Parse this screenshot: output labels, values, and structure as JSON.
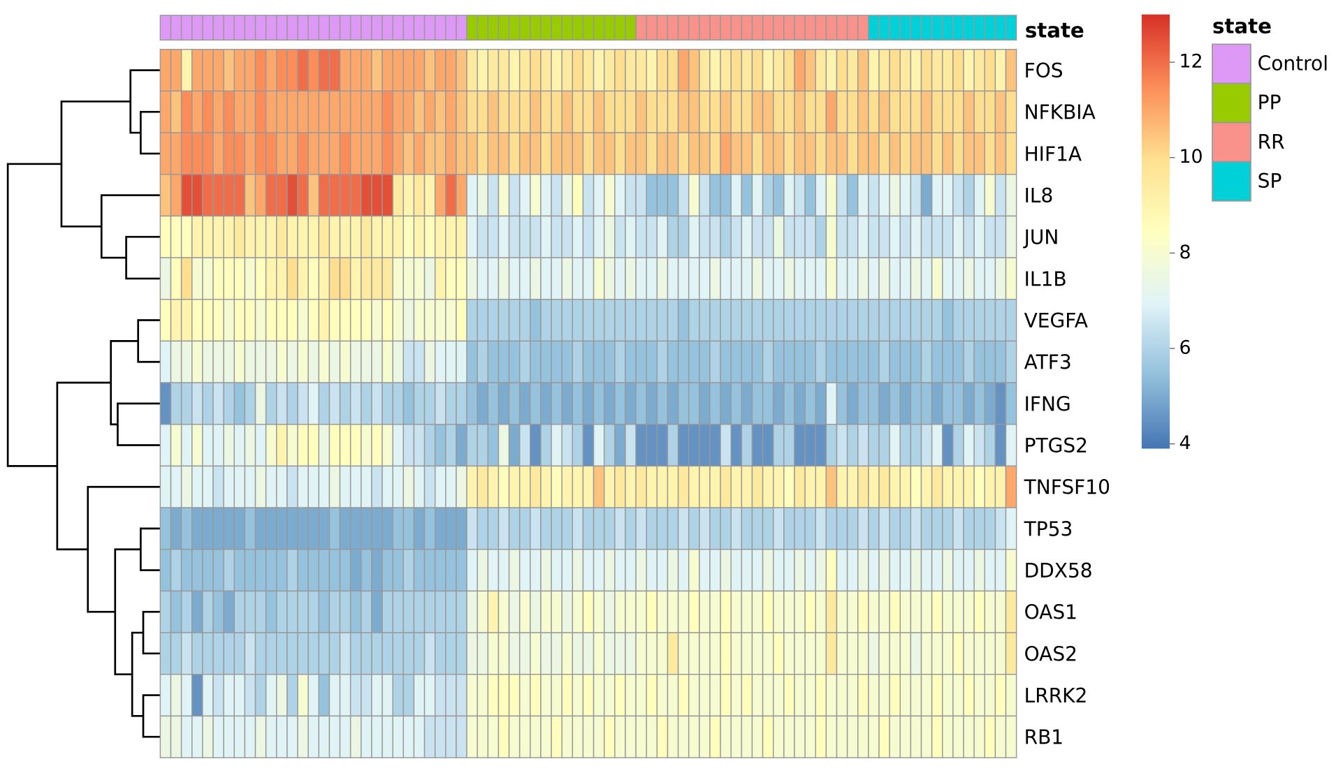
{
  "chart_data": {
    "type": "heatmap",
    "rows": [
      "FOS",
      "NFKBIA",
      "HIF1A",
      "IL8",
      "JUN",
      "IL1B",
      "VEGFA",
      "ATF3",
      "IFNG",
      "PTGS2",
      "TNFSF10",
      "TP53",
      "DDX58",
      "OAS1",
      "OAS2",
      "LRRK2",
      "RB1"
    ],
    "z": [
      [
        11,
        11,
        9,
        11,
        11,
        11,
        10.5,
        11,
        11,
        11.5,
        11,
        11.5,
        11.5,
        12,
        11.5,
        12,
        12,
        11,
        11,
        11,
        10.5,
        11,
        11,
        11,
        11,
        10.5,
        11,
        11,
        10.5,
        9.5,
        9,
        9.5,
        9.5,
        9,
        9.5,
        10,
        9.5,
        9,
        9.5,
        10,
        9.5,
        9,
        9.5,
        10,
        9.5,
        9.5,
        9,
        10,
        10,
        11,
        10.5,
        9.5,
        9,
        9.5,
        10,
        9.5,
        10,
        9,
        9.5,
        10,
        11,
        10.5,
        9.5,
        9,
        10,
        9.5,
        10.5,
        9,
        9.5,
        10,
        9.5,
        9,
        10,
        9.5,
        9.5,
        10,
        9,
        9.5,
        10,
        9,
        10.5
      ],
      [
        11,
        10.5,
        11.5,
        11,
        11.5,
        11,
        11.5,
        11,
        11,
        11.5,
        11,
        11,
        11,
        11,
        11,
        11,
        11,
        11,
        11,
        11,
        11,
        11.5,
        11,
        11,
        10.5,
        11,
        10.5,
        11,
        10.5,
        10,
        10,
        10.5,
        10,
        10,
        10,
        10.5,
        10,
        10,
        10.5,
        10,
        10,
        10.5,
        10,
        10,
        10,
        10.5,
        10,
        10,
        10,
        10.5,
        10.5,
        10,
        10,
        10.5,
        10,
        10,
        10.5,
        10.5,
        10,
        10,
        10.5,
        10,
        10,
        11,
        10,
        10,
        10.5,
        10,
        10.5,
        10,
        10,
        10,
        10.5,
        10,
        10,
        10,
        10.5,
        10,
        10,
        10.5,
        10
      ],
      [
        11,
        11,
        11.5,
        11.5,
        11.5,
        11,
        11.5,
        11.5,
        11,
        11.5,
        11.5,
        11,
        11,
        11.5,
        11,
        11,
        11,
        11.5,
        11,
        11,
        11,
        11.5,
        11,
        10.5,
        11,
        10.5,
        10.5,
        11,
        10.5,
        10.5,
        10,
        10.5,
        10.5,
        10,
        10.5,
        10.5,
        10,
        10.5,
        10.5,
        10.5,
        10,
        10.5,
        10.5,
        10,
        10.5,
        10.5,
        10,
        10.5,
        10.5,
        10,
        10.5,
        10.5,
        10,
        11,
        10.5,
        10.5,
        10,
        10.5,
        10.5,
        10,
        10.5,
        10.5,
        10,
        10.5,
        10.5,
        10,
        10.5,
        10.5,
        10,
        10.5,
        10,
        10.5,
        10.5,
        10,
        10.5,
        10,
        10.5,
        10.5,
        10,
        10.5,
        10
      ],
      [
        10.5,
        11,
        12.5,
        12.5,
        12,
        12,
        12,
        12,
        10.5,
        11,
        12,
        12,
        12.5,
        12,
        10.5,
        12,
        12,
        12,
        12,
        12.5,
        12.5,
        12.5,
        9.5,
        9,
        9.5,
        9,
        11,
        12,
        11,
        7,
        7.5,
        6.5,
        8,
        6.5,
        7,
        8,
        7,
        6.5,
        7.5,
        8.5,
        6.5,
        7,
        8,
        7,
        6.5,
        6.5,
        5.5,
        5.5,
        5.5,
        6.5,
        8,
        6.5,
        5.5,
        5.5,
        7,
        5.5,
        7,
        6,
        5.5,
        7,
        6.5,
        5.5,
        7,
        8,
        6.5,
        5.5,
        7,
        6.5,
        7,
        7.5,
        7,
        6.5,
        5,
        7,
        7,
        6.5,
        6,
        7,
        8,
        6.5,
        7.5
      ],
      [
        8.5,
        8.5,
        8.5,
        9,
        9,
        9,
        9,
        9.5,
        9,
        9,
        9,
        9.5,
        9,
        9,
        9,
        9.5,
        9,
        9,
        9,
        9.5,
        9,
        9,
        9,
        8.5,
        9,
        8.5,
        9,
        9,
        9,
        7,
        6.5,
        6.5,
        7,
        6.5,
        6.5,
        6.5,
        7,
        6.5,
        6.5,
        7,
        6.5,
        7,
        7.5,
        6.5,
        7,
        6.5,
        6.5,
        7,
        6,
        6,
        7,
        6.5,
        6.5,
        6,
        6.5,
        7,
        6.5,
        6.5,
        7.5,
        6.5,
        6.5,
        6.5,
        6,
        8,
        6.5,
        6.5,
        7,
        6.5,
        6.5,
        7,
        6.5,
        7,
        6.5,
        6.5,
        6.5,
        7,
        6.5,
        7,
        6.5,
        6.5,
        7.5
      ],
      [
        7.5,
        8.5,
        10,
        8,
        8,
        8.5,
        8.5,
        8.5,
        8,
        8.5,
        9,
        9,
        10,
        9,
        8.5,
        9,
        10,
        10,
        9,
        9.5,
        9.5,
        9.5,
        8,
        8,
        8,
        7.5,
        9,
        8.5,
        8.5,
        7.5,
        7,
        7,
        7.5,
        7,
        7,
        7.5,
        7,
        7,
        7.5,
        7,
        7,
        8,
        7.5,
        7,
        7.5,
        7,
        7,
        7.5,
        7,
        7,
        7,
        7,
        7.5,
        7,
        7,
        7,
        7.5,
        7,
        7,
        7.5,
        7,
        7,
        7,
        8,
        7,
        7,
        7.5,
        7,
        7.5,
        7,
        7,
        7.5,
        7,
        8,
        7,
        7,
        7.5,
        7,
        7,
        7.5,
        8
      ],
      [
        8.5,
        9,
        9,
        8.5,
        8.5,
        8.5,
        8,
        8.5,
        8.5,
        8,
        8.5,
        8.5,
        8.5,
        8,
        8.5,
        9,
        8.5,
        8.5,
        8.5,
        8.5,
        8,
        8.5,
        8,
        7.5,
        8,
        8,
        8,
        8,
        8.5,
        6,
        6,
        6,
        6,
        6,
        6,
        5.5,
        6,
        6,
        6,
        6,
        6,
        6,
        6,
        6,
        6,
        6,
        6,
        6,
        6,
        5.5,
        6,
        6,
        6,
        6,
        6,
        6,
        6,
        6,
        6,
        6,
        6,
        6,
        6,
        6,
        6,
        6,
        6,
        6,
        6,
        6,
        6,
        6,
        6,
        6,
        5.5,
        6,
        6,
        6,
        6,
        6,
        6
      ],
      [
        7,
        7.5,
        7.5,
        8,
        7.5,
        7.5,
        7.5,
        8,
        7.5,
        7.5,
        7.5,
        8,
        7.5,
        8,
        7.5,
        8,
        7.5,
        8,
        7.5,
        7.5,
        7.5,
        8,
        7.5,
        6.5,
        6.5,
        7.5,
        7,
        7,
        7,
        5.5,
        6,
        5.5,
        5.5,
        5.5,
        6,
        5.5,
        5.5,
        5.5,
        5.5,
        6,
        5.5,
        5.5,
        5.5,
        6,
        5.5,
        5.5,
        5.5,
        6,
        5.5,
        5.5,
        5.5,
        5.5,
        6,
        5.5,
        5.5,
        5.5,
        5.5,
        6,
        5.5,
        5.5,
        5.5,
        5.5,
        6,
        5.5,
        5.5,
        5.5,
        5.5,
        5.5,
        6,
        5.5,
        5.5,
        5.5,
        6,
        5.5,
        5.5,
        5.5,
        6,
        5.5,
        5.5,
        5.5,
        6
      ],
      [
        4.5,
        6,
        6,
        6.5,
        6,
        6.5,
        6,
        5.5,
        6,
        7.5,
        6,
        6.5,
        6,
        6.5,
        7,
        6,
        6.5,
        6,
        6.5,
        6,
        6.5,
        6,
        6,
        5.5,
        6,
        6,
        6.5,
        6,
        6,
        5.5,
        5,
        5.5,
        5,
        5.5,
        5,
        5.5,
        5,
        5.5,
        5,
        5.5,
        5,
        5.5,
        5,
        5.5,
        5,
        5.5,
        5,
        5.5,
        5,
        5.5,
        5.5,
        5,
        5.5,
        5,
        5.5,
        5,
        5.5,
        5.5,
        5,
        5.5,
        5,
        5.5,
        5,
        7,
        5.5,
        5,
        5.5,
        5.5,
        5,
        5.5,
        5,
        5.5,
        5.5,
        5,
        5.5,
        5.5,
        5,
        5.5,
        5,
        4.5,
        5.5
      ],
      [
        7,
        8,
        7,
        8,
        7,
        7,
        7.5,
        7,
        7.5,
        7,
        8,
        9,
        8,
        8.5,
        8.5,
        7.5,
        8.5,
        8.5,
        8.5,
        8,
        8.5,
        8,
        7,
        6.5,
        6.5,
        6,
        5.5,
        6,
        5,
        6,
        6,
        5.5,
        7.5,
        5,
        6.5,
        4.5,
        6,
        7,
        6.5,
        6,
        4.5,
        7,
        6,
        5,
        6.5,
        4.5,
        4.5,
        4.5,
        6,
        4.5,
        4.5,
        4.5,
        4.5,
        6.5,
        4.5,
        6,
        4.5,
        4.5,
        6,
        6,
        4.5,
        4.5,
        4.5,
        6,
        6.5,
        6,
        6.5,
        6,
        6,
        7,
        6,
        6,
        6.5,
        7,
        4.5,
        6,
        7,
        6.5,
        6,
        4.5,
        7
      ],
      [
        7,
        7,
        7.5,
        7,
        7,
        6.5,
        7,
        7,
        7,
        7.5,
        7,
        7,
        6.5,
        7,
        7,
        7,
        7.5,
        7,
        7,
        7,
        6.5,
        7,
        7,
        7.5,
        7,
        6.5,
        7,
        7,
        7.5,
        9,
        9.5,
        9,
        8.5,
        9,
        9,
        9.5,
        9,
        8.5,
        9,
        9,
        9,
        10.5,
        9,
        9.5,
        9,
        9.5,
        9,
        9,
        9,
        9.5,
        9,
        9,
        9,
        9.5,
        9,
        9,
        9.5,
        9,
        9,
        8.5,
        9.5,
        9,
        9,
        10.5,
        9,
        9,
        9.5,
        9,
        9.5,
        9,
        9,
        8.5,
        9,
        9.5,
        9,
        9,
        9,
        8.5,
        9,
        9,
        11
      ],
      [
        5.5,
        5,
        5.5,
        5,
        5,
        5,
        5,
        5,
        5.5,
        5,
        5,
        5,
        5,
        5,
        5,
        5,
        5.5,
        5,
        5,
        5,
        5,
        5,
        5.5,
        5.5,
        5,
        5.5,
        5,
        5,
        5,
        6.5,
        6,
        6,
        6.5,
        6,
        6,
        6.5,
        6,
        6,
        6,
        6.5,
        6,
        6,
        6,
        6.5,
        6,
        6.5,
        6,
        6,
        6,
        6.5,
        6,
        6.5,
        6,
        6,
        6.5,
        6,
        6,
        6,
        6.5,
        6,
        6,
        6,
        6.5,
        6,
        6,
        6,
        6.5,
        6,
        6.5,
        6,
        6,
        6.5,
        6,
        6,
        6,
        6.5,
        6,
        6,
        6,
        6.5,
        7
      ],
      [
        5.5,
        6,
        5.5,
        5.5,
        5.5,
        5.5,
        6,
        5.5,
        5.5,
        5.5,
        5.5,
        5.5,
        6,
        5.5,
        5.5,
        5.5,
        5.5,
        5.5,
        5,
        5.5,
        5,
        5.5,
        5.5,
        6,
        5.5,
        5.5,
        5.5,
        5.5,
        5.5,
        7,
        7.5,
        7,
        7,
        7.5,
        7,
        7,
        7.5,
        7,
        7,
        7.5,
        7,
        7,
        7.5,
        7,
        7,
        7.5,
        7,
        7,
        7.5,
        7,
        8,
        7,
        7,
        7.5,
        7,
        7,
        7,
        7.5,
        7,
        7,
        7.5,
        7,
        7.5,
        8.5,
        7,
        7,
        7.5,
        7,
        7.5,
        7,
        7,
        7.5,
        7,
        7,
        7.5,
        7,
        7,
        7.5,
        7,
        7,
        8
      ],
      [
        6,
        5.5,
        6,
        5,
        6,
        5.5,
        5,
        6,
        6,
        6,
        5.5,
        6,
        6,
        6,
        6,
        5.5,
        6,
        6,
        5.5,
        6,
        5,
        6,
        6,
        6,
        6,
        6,
        6,
        6,
        6,
        7.5,
        8,
        9,
        8,
        7.5,
        8,
        7.5,
        8,
        8,
        7.5,
        8,
        8.5,
        8,
        7.5,
        8,
        8,
        8,
        8.5,
        8,
        8,
        8,
        8.5,
        8,
        8,
        8.5,
        8,
        8,
        8,
        8.5,
        8,
        8,
        8,
        8.5,
        8,
        9.5,
        8,
        8,
        8.5,
        8,
        8,
        8.5,
        8,
        8,
        8,
        8.5,
        8,
        8,
        8,
        8.5,
        8,
        8,
        9.5
      ],
      [
        6,
        6,
        6.5,
        6,
        6,
        6,
        6,
        6,
        6.5,
        6,
        6,
        6,
        6,
        6,
        6,
        6,
        6,
        6.5,
        6,
        6,
        6,
        6,
        6,
        6,
        6,
        6.5,
        6,
        6,
        6,
        7.5,
        7.5,
        8,
        8,
        7.5,
        7.5,
        8,
        7.5,
        7.5,
        8,
        7.5,
        7.5,
        8,
        7.5,
        7.5,
        7.5,
        8,
        8,
        8,
        9.5,
        8,
        8,
        8,
        8,
        8.5,
        8,
        8,
        8,
        8,
        8.5,
        8,
        8,
        8,
        8,
        9.5,
        8,
        8,
        8,
        7.5,
        8,
        8,
        8,
        7.5,
        8,
        8,
        8,
        8.5,
        8,
        8,
        8,
        8,
        9.5
      ],
      [
        7,
        7.5,
        7,
        4.5,
        7,
        6.5,
        7,
        7,
        6.5,
        6,
        7,
        7.5,
        6,
        8,
        7,
        5.5,
        7,
        7,
        6.5,
        6.5,
        7,
        7,
        6,
        6,
        7,
        7,
        6.5,
        6.5,
        6.5,
        8,
        8,
        8.5,
        8.5,
        8.5,
        8,
        8.5,
        8,
        8,
        8.5,
        8,
        8.5,
        8,
        8,
        8.5,
        8,
        8,
        8.5,
        8,
        8,
        8.5,
        8,
        8,
        8,
        8.5,
        8,
        8.5,
        8,
        8,
        8,
        8.5,
        8,
        8,
        8.5,
        8,
        8,
        8,
        8.5,
        8,
        8,
        8.5,
        8,
        8,
        8,
        8.5,
        8,
        8,
        8.5,
        8,
        8,
        8.5,
        8
      ],
      [
        7.5,
        7.5,
        7,
        7,
        7.5,
        7,
        7,
        7,
        7,
        7.5,
        7,
        7,
        7,
        7.5,
        7,
        7,
        7,
        7,
        7.5,
        7,
        7,
        7,
        7,
        7,
        7,
        6.5,
        6.5,
        6.5,
        6.5,
        8,
        8,
        8,
        8.5,
        8,
        8,
        8,
        8,
        8.5,
        8,
        8,
        8,
        8,
        8.5,
        8,
        8,
        8,
        8,
        8.5,
        8,
        8,
        8,
        8,
        8.5,
        8,
        8,
        8,
        8,
        8.5,
        8,
        8,
        8,
        8,
        8.5,
        8,
        8,
        8,
        8,
        8,
        8.5,
        8,
        8,
        8,
        8,
        8.5,
        8,
        8,
        8,
        8,
        8.5,
        8,
        8
      ]
    ],
    "zlim": [
      3.9,
      13
    ],
    "zticks": [
      4,
      6,
      8,
      10,
      12
    ],
    "colorscale": [
      "#4575b4",
      "#91bfdb",
      "#e0f3f8",
      "#ffffbf",
      "#fee090",
      "#fc8d59",
      "#d73027"
    ],
    "column_annotation": {
      "title": "state",
      "levels": [
        {
          "name": "Control",
          "color": "#dd99f5"
        },
        {
          "name": "PP",
          "color": "#99cc00"
        },
        {
          "name": "RR",
          "color": "#f8928a"
        },
        {
          "name": "SP",
          "color": "#00d0d8"
        }
      ],
      "values": [
        "Control",
        "Control",
        "Control",
        "Control",
        "Control",
        "Control",
        "Control",
        "Control",
        "Control",
        "Control",
        "Control",
        "Control",
        "Control",
        "Control",
        "Control",
        "Control",
        "Control",
        "Control",
        "Control",
        "Control",
        "Control",
        "Control",
        "Control",
        "Control",
        "Control",
        "Control",
        "Control",
        "Control",
        "Control",
        "PP",
        "PP",
        "PP",
        "PP",
        "PP",
        "PP",
        "PP",
        "PP",
        "PP",
        "PP",
        "PP",
        "PP",
        "PP",
        "PP",
        "PP",
        "PP",
        "RR",
        "RR",
        "RR",
        "RR",
        "RR",
        "RR",
        "RR",
        "RR",
        "RR",
        "RR",
        "RR",
        "RR",
        "RR",
        "RR",
        "RR",
        "RR",
        "RR",
        "RR",
        "RR",
        "RR",
        "RR",
        "RR",
        "SP",
        "SP",
        "SP",
        "SP",
        "SP",
        "SP",
        "SP",
        "SP",
        "SP",
        "SP",
        "SP",
        "SP",
        "SP",
        "SP"
      ]
    }
  }
}
